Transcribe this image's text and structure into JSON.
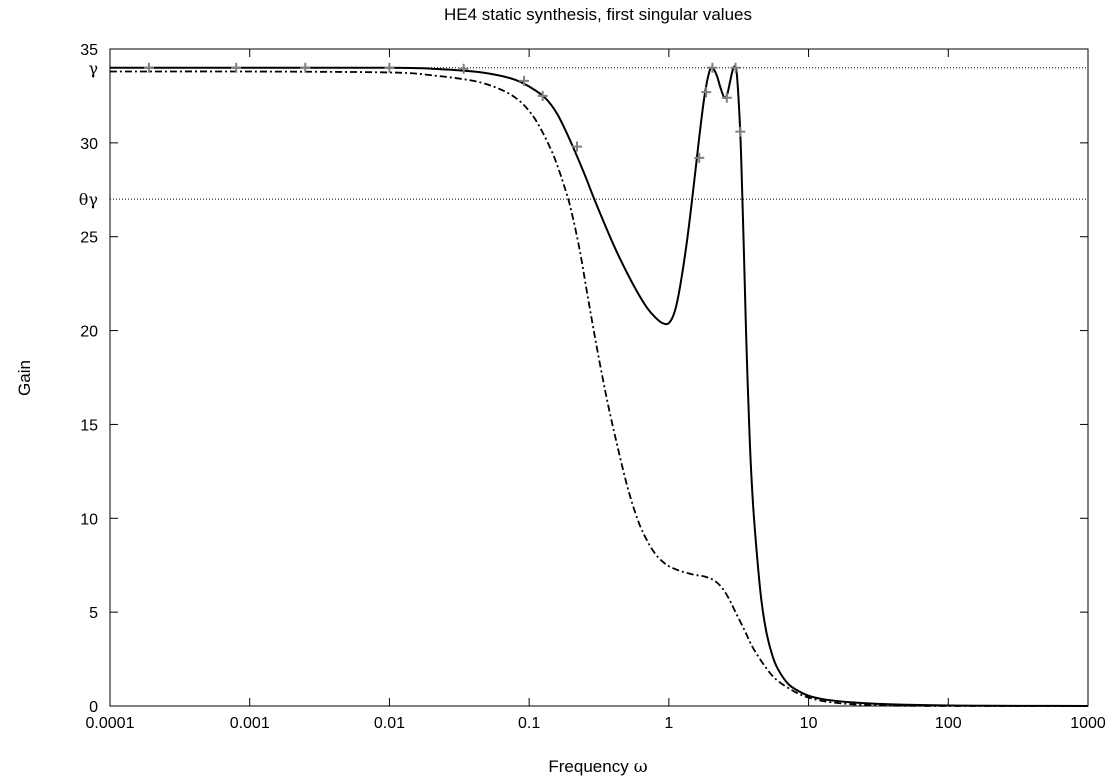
{
  "chart_data": {
    "type": "line",
    "title": "HE4 static synthesis, first singular values",
    "xlabel": "Frequency",
    "xlabel_symbol": "ω",
    "ylabel": "Gain",
    "xscale": "log",
    "xlim": [
      0.0001,
      1000
    ],
    "ylim": [
      0,
      35
    ],
    "xticks": [
      0.0001,
      0.001,
      0.01,
      0.1,
      1,
      10,
      100,
      1000
    ],
    "xtick_labels": [
      "0.0001",
      "0.001",
      "0.01",
      "0.1",
      "1",
      "10",
      "100",
      "1000"
    ],
    "yticks": [
      0,
      5,
      10,
      15,
      20,
      25,
      30,
      35
    ],
    "ytick_labels": [
      "0",
      "5",
      "10",
      "15",
      "20",
      "25",
      "30",
      "35"
    ],
    "reference_lines": [
      {
        "label": "γ",
        "y": 34.0
      },
      {
        "label": "θγ",
        "y": 27.0
      }
    ],
    "grid": false,
    "legend": "none",
    "series": [
      {
        "style": "solid",
        "color": "#000000",
        "x": [
          0.0001,
          0.001,
          0.01,
          0.02,
          0.04,
          0.06,
          0.08,
          0.1,
          0.13,
          0.16,
          0.2,
          0.25,
          0.3,
          0.4,
          0.5,
          0.6,
          0.7,
          0.8,
          0.9,
          1.0,
          1.1,
          1.2,
          1.35,
          1.5,
          1.65,
          1.8,
          1.95,
          2.05,
          2.2,
          2.35,
          2.5,
          2.62,
          2.75,
          2.9,
          3.05,
          3.2,
          3.3,
          3.45,
          3.6,
          3.8,
          4.0,
          4.3,
          4.6,
          5.0,
          5.5,
          6.0,
          7.0,
          8.0,
          10,
          13,
          20,
          30,
          50,
          100,
          200,
          500,
          1000
        ],
        "y": [
          34.0,
          34.0,
          34.0,
          33.95,
          33.8,
          33.6,
          33.35,
          33.0,
          32.4,
          31.5,
          30.0,
          28.3,
          26.8,
          24.6,
          23.1,
          22.0,
          21.2,
          20.7,
          20.4,
          20.4,
          21.0,
          22.3,
          24.8,
          27.6,
          30.3,
          32.5,
          33.8,
          34.0,
          33.6,
          32.9,
          32.4,
          32.6,
          33.3,
          34.0,
          33.8,
          31.5,
          29.0,
          24.0,
          19.0,
          14.0,
          10.8,
          7.8,
          5.6,
          3.9,
          2.7,
          2.0,
          1.25,
          0.9,
          0.55,
          0.35,
          0.2,
          0.12,
          0.07,
          0.03,
          0.015,
          0.005,
          0.002
        ]
      },
      {
        "style": "dash-dot",
        "color": "#000000",
        "x": [
          0.0001,
          0.001,
          0.01,
          0.02,
          0.04,
          0.06,
          0.08,
          0.1,
          0.12,
          0.15,
          0.18,
          0.2,
          0.23,
          0.26,
          0.3,
          0.35,
          0.4,
          0.5,
          0.6,
          0.7,
          0.8,
          0.9,
          1.0,
          1.2,
          1.5,
          1.8,
          2.1,
          2.4,
          2.7,
          3.0,
          3.5,
          4.0,
          5.0,
          6.0,
          8.0,
          10,
          13,
          20,
          30,
          50,
          100,
          1000
        ],
        "y": [
          33.8,
          33.8,
          33.75,
          33.6,
          33.3,
          32.9,
          32.4,
          31.7,
          30.8,
          29.3,
          27.6,
          26.4,
          24.3,
          22.0,
          19.4,
          16.8,
          14.8,
          11.8,
          9.9,
          8.8,
          8.1,
          7.7,
          7.45,
          7.2,
          7.0,
          6.9,
          6.7,
          6.3,
          5.7,
          5.0,
          4.0,
          3.1,
          2.0,
          1.35,
          0.75,
          0.45,
          0.25,
          0.1,
          0.04,
          0.01,
          0.003,
          0.0
        ]
      },
      {
        "style": "markers",
        "marker": "+",
        "color": "#808080",
        "x": [
          0.00019,
          0.0008,
          0.0025,
          0.01,
          0.034,
          0.092,
          0.125,
          0.22,
          1.65,
          1.85,
          2.05,
          2.6,
          3.0,
          3.25
        ],
        "y": [
          34.0,
          34.0,
          34.0,
          34.0,
          33.95,
          33.3,
          32.5,
          29.8,
          29.2,
          32.7,
          34.0,
          32.4,
          34.0,
          30.6
        ]
      }
    ]
  }
}
